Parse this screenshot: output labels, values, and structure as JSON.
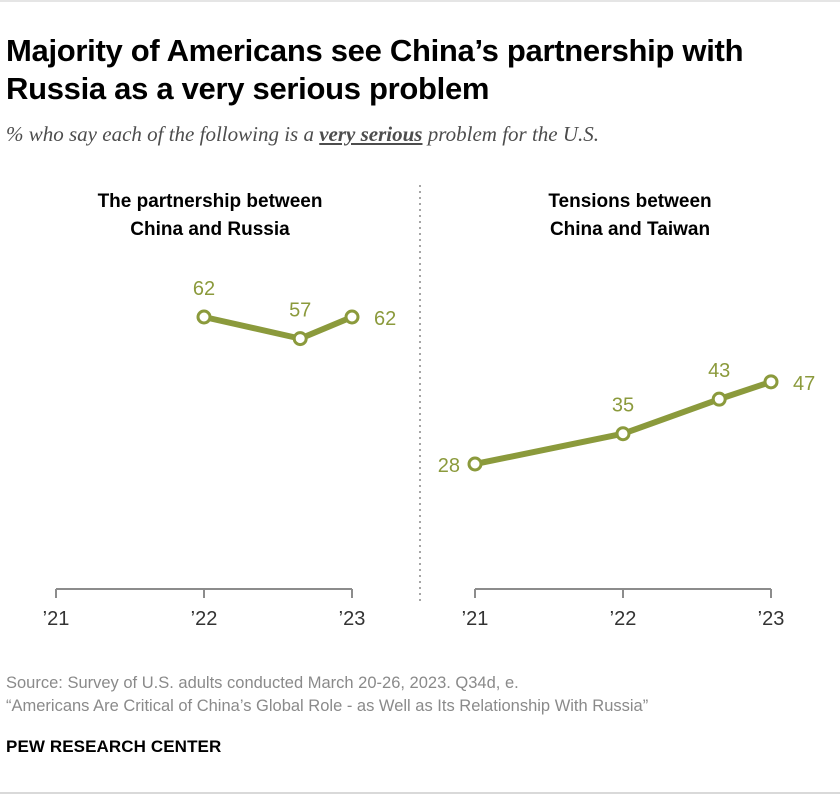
{
  "title": "Majority of Americans see China’s partnership with Russia as a very serious problem",
  "subtitle": {
    "prefix": "% who say each of the following is a",
    "emphasis": "very serious",
    "suffix": "problem for the U.S."
  },
  "source": {
    "line1": "Source: Survey of U.S. adults conducted March 20-26, 2023. Q34d, e.",
    "line2": "“Americans Are Critical of China’s Global Role - as Well as Its Relationship With Russia”"
  },
  "brand": "PEW RESEARCH CENTER",
  "colors": {
    "series": "#8b9a3c",
    "label": "#8b9a3c",
    "axis": "#8c8c8c",
    "divider": "#a6a6a6"
  },
  "chart_data": [
    {
      "type": "line",
      "title_lines": [
        "The partnership between",
        "China and Russia"
      ],
      "x_ticks": [
        "’21",
        "’22",
        "’23"
      ],
      "points": [
        {
          "year": 2022.0,
          "value": 62,
          "label": "62"
        },
        {
          "year": 2022.65,
          "value": 57,
          "label": "57"
        },
        {
          "year": 2023.0,
          "value": 62,
          "label": "62"
        }
      ],
      "xlim": [
        2021,
        2023
      ],
      "ylim": [
        0,
        100
      ],
      "xlabel": "",
      "ylabel": ""
    },
    {
      "type": "line",
      "title_lines": [
        "Tensions between",
        "China and Taiwan"
      ],
      "x_ticks": [
        "’21",
        "’22",
        "’23"
      ],
      "points": [
        {
          "year": 2021.0,
          "value": 28,
          "label": "28"
        },
        {
          "year": 2022.0,
          "value": 35,
          "label": "35"
        },
        {
          "year": 2022.65,
          "value": 43,
          "label": "43"
        },
        {
          "year": 2023.0,
          "value": 47,
          "label": "47"
        }
      ],
      "xlim": [
        2021,
        2023
      ],
      "ylim": [
        0,
        100
      ],
      "xlabel": "",
      "ylabel": ""
    }
  ]
}
